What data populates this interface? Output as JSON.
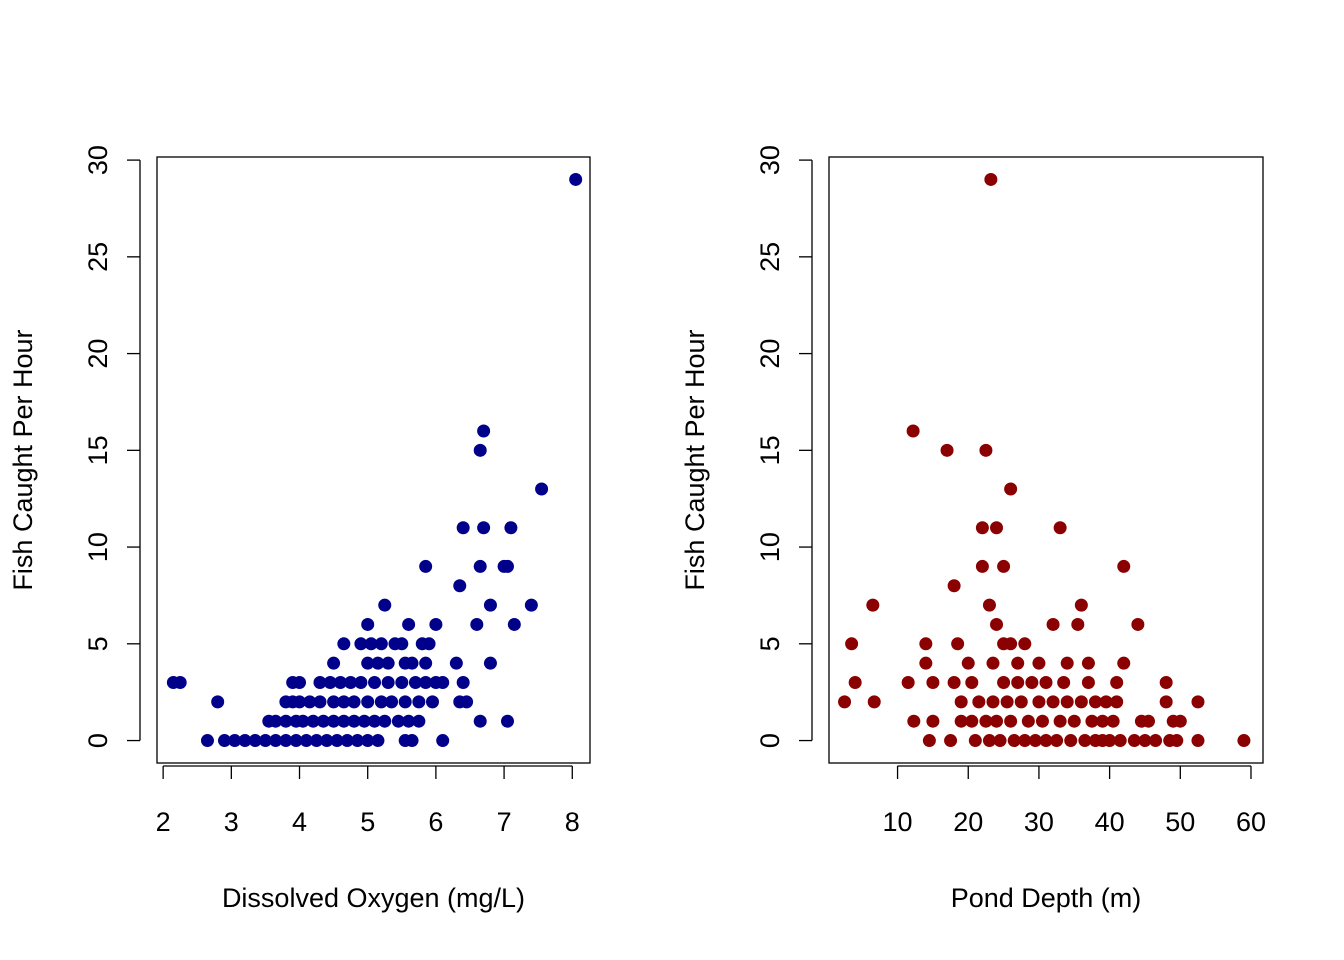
{
  "chart_data": [
    {
      "type": "scatter",
      "xlabel": "Dissolved Oxygen (mg/L)",
      "ylabel": "Fish Caught Per Hour",
      "color": "#00008b",
      "xlim": [
        1.91,
        8.26
      ],
      "ylim": [
        -1.16,
        30.16
      ],
      "xticks": [
        2,
        3,
        4,
        5,
        6,
        7,
        8
      ],
      "yticks": [
        0,
        5,
        10,
        15,
        20,
        25,
        30
      ],
      "x": [
        2.15,
        2.25,
        2.8,
        2.65,
        2.9,
        3.05,
        3.2,
        3.35,
        3.5,
        3.65,
        3.8,
        3.95,
        4.1,
        4.25,
        4.4,
        4.55,
        4.7,
        4.85,
        5.0,
        5.15,
        5.55,
        5.65,
        6.1,
        3.55,
        3.65,
        3.8,
        3.95,
        4.05,
        4.2,
        4.35,
        4.5,
        4.65,
        4.8,
        4.95,
        5.1,
        5.25,
        5.45,
        5.6,
        5.75,
        6.65,
        7.05,
        3.8,
        3.9,
        4.0,
        4.15,
        4.3,
        4.5,
        4.65,
        4.8,
        5.0,
        5.2,
        5.35,
        5.55,
        5.75,
        5.95,
        6.35,
        6.45,
        3.9,
        4.0,
        4.3,
        4.45,
        4.6,
        4.75,
        4.9,
        5.1,
        5.3,
        5.5,
        5.7,
        5.85,
        6.0,
        6.1,
        6.4,
        4.5,
        5.0,
        5.15,
        5.3,
        5.55,
        5.65,
        5.85,
        6.3,
        6.8,
        4.65,
        4.9,
        5.05,
        5.2,
        5.4,
        5.5,
        5.8,
        5.9,
        5.0,
        5.6,
        6.0,
        6.6,
        7.15,
        5.25,
        6.8,
        7.4,
        6.35,
        5.85,
        6.65,
        7.0,
        7.05,
        6.4,
        6.7,
        7.1,
        7.55,
        6.65,
        6.7,
        8.05
      ],
      "values": [
        3,
        3,
        2,
        0,
        0,
        0,
        0,
        0,
        0,
        0,
        0,
        0,
        0,
        0,
        0,
        0,
        0,
        0,
        0,
        0,
        0,
        0,
        0,
        1,
        1,
        1,
        1,
        1,
        1,
        1,
        1,
        1,
        1,
        1,
        1,
        1,
        1,
        1,
        1,
        1,
        1,
        2,
        2,
        2,
        2,
        2,
        2,
        2,
        2,
        2,
        2,
        2,
        2,
        2,
        2,
        2,
        2,
        3,
        3,
        3,
        3,
        3,
        3,
        3,
        3,
        3,
        3,
        3,
        3,
        3,
        3,
        3,
        4,
        4,
        4,
        4,
        4,
        4,
        4,
        4,
        4,
        5,
        5,
        5,
        5,
        5,
        5,
        5,
        5,
        6,
        6,
        6,
        6,
        6,
        7,
        7,
        7,
        8,
        9,
        9,
        9,
        9,
        11,
        11,
        11,
        13,
        15,
        16,
        29
      ]
    },
    {
      "type": "scatter",
      "xlabel": "Pond Depth (m)",
      "ylabel": "Fish Caught Per Hour",
      "color": "#8b0000",
      "xlim": [
        0.3,
        61.7
      ],
      "ylim": [
        -1.16,
        30.16
      ],
      "xticks": [
        10,
        20,
        30,
        40,
        50,
        60
      ],
      "yticks": [
        0,
        5,
        10,
        15,
        20,
        25,
        30
      ],
      "x": [
        2.5,
        3.5,
        4,
        6.5,
        6.7,
        11.5,
        12.2,
        12.3,
        14,
        14,
        14.5,
        15,
        15,
        17,
        17.5,
        18,
        18,
        18.5,
        19,
        19,
        20,
        20.5,
        20.5,
        21,
        21.5,
        22,
        22,
        22.5,
        22.5,
        23,
        23,
        23.2,
        23.5,
        23.5,
        24,
        24,
        24,
        24.5,
        25,
        25,
        25,
        25.5,
        26,
        26,
        26,
        26.5,
        27,
        27,
        27.5,
        28,
        28,
        28.5,
        29,
        29.5,
        30,
        30,
        30.5,
        31,
        31,
        32,
        32,
        32.5,
        33,
        33,
        33.5,
        34,
        34,
        34.5,
        35,
        35.5,
        36,
        36,
        36.5,
        37,
        37,
        37.5,
        38,
        38,
        39,
        39,
        39.5,
        40,
        40.5,
        41,
        41,
        41.5,
        42,
        42,
        43.5,
        44,
        44.5,
        45,
        45.5,
        46.5,
        48,
        48,
        48.5,
        49,
        49.5,
        50,
        52.5,
        52.5,
        59
      ],
      "values": [
        2,
        5,
        3,
        7,
        2,
        3,
        16,
        1,
        5,
        4,
        0,
        1,
        3,
        15,
        0,
        8,
        3,
        5,
        1,
        2,
        4,
        1,
        3,
        0,
        2,
        11,
        9,
        1,
        15,
        0,
        7,
        29,
        4,
        2,
        11,
        6,
        1,
        0,
        9,
        3,
        5,
        2,
        5,
        13,
        1,
        0,
        3,
        4,
        2,
        5,
        0,
        1,
        3,
        0,
        2,
        4,
        1,
        3,
        0,
        6,
        2,
        0,
        11,
        1,
        3,
        2,
        4,
        0,
        1,
        6,
        7,
        2,
        0,
        4,
        3,
        1,
        2,
        0,
        0,
        1,
        2,
        0,
        1,
        2,
        3,
        0,
        9,
        4,
        0,
        6,
        1,
        0,
        1,
        0,
        3,
        2,
        0,
        1,
        0,
        1,
        2,
        0,
        0
      ]
    }
  ]
}
